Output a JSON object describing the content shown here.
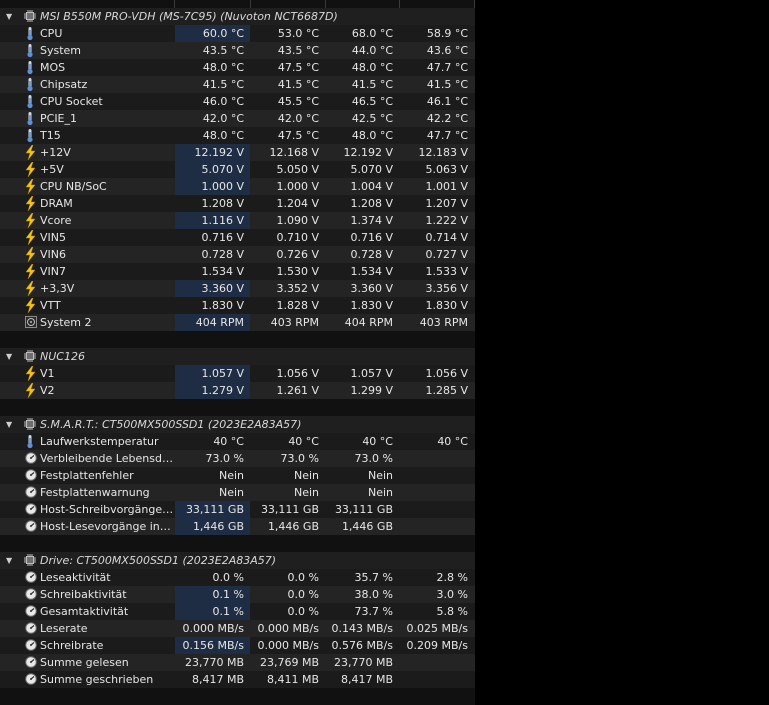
{
  "groups": [
    {
      "title": "MSI B550M PRO-VDH (MS-7C95) (Nuvoton NCT6687D)",
      "icon": "chip-icon",
      "rows": [
        {
          "label": "CPU",
          "icon": "thermometer-icon",
          "cur": "60.0 °C",
          "min": "53.0 °C",
          "max": "68.0 °C",
          "avg": "58.9 °C",
          "hl": true
        },
        {
          "label": "System",
          "icon": "thermometer-icon",
          "cur": "43.5 °C",
          "min": "43.5 °C",
          "max": "44.0 °C",
          "avg": "43.6 °C",
          "hl": false
        },
        {
          "label": "MOS",
          "icon": "thermometer-icon",
          "cur": "48.0 °C",
          "min": "47.5 °C",
          "max": "48.0 °C",
          "avg": "47.7 °C",
          "hl": false
        },
        {
          "label": "Chipsatz",
          "icon": "thermometer-icon",
          "cur": "41.5 °C",
          "min": "41.5 °C",
          "max": "41.5 °C",
          "avg": "41.5 °C",
          "hl": false
        },
        {
          "label": "CPU Socket",
          "icon": "thermometer-icon",
          "cur": "46.0 °C",
          "min": "45.5 °C",
          "max": "46.5 °C",
          "avg": "46.1 °C",
          "hl": false
        },
        {
          "label": "PCIE_1",
          "icon": "thermometer-icon",
          "cur": "42.0 °C",
          "min": "42.0 °C",
          "max": "42.5 °C",
          "avg": "42.2 °C",
          "hl": false
        },
        {
          "label": "T15",
          "icon": "thermometer-icon",
          "cur": "48.0 °C",
          "min": "47.5 °C",
          "max": "48.0 °C",
          "avg": "47.7 °C",
          "hl": false
        },
        {
          "label": "+12V",
          "icon": "lightning-icon",
          "cur": "12.192 V",
          "min": "12.168 V",
          "max": "12.192 V",
          "avg": "12.183 V",
          "hl": true
        },
        {
          "label": "+5V",
          "icon": "lightning-icon",
          "cur": "5.070 V",
          "min": "5.050 V",
          "max": "5.070 V",
          "avg": "5.063 V",
          "hl": true
        },
        {
          "label": "CPU NB/SoC",
          "icon": "lightning-icon",
          "cur": "1.000 V",
          "min": "1.000 V",
          "max": "1.004 V",
          "avg": "1.001 V",
          "hl": true
        },
        {
          "label": "DRAM",
          "icon": "lightning-icon",
          "cur": "1.208 V",
          "min": "1.204 V",
          "max": "1.208 V",
          "avg": "1.207 V",
          "hl": false
        },
        {
          "label": "Vcore",
          "icon": "lightning-icon",
          "cur": "1.116 V",
          "min": "1.090 V",
          "max": "1.374 V",
          "avg": "1.222 V",
          "hl": true
        },
        {
          "label": "VIN5",
          "icon": "lightning-icon",
          "cur": "0.716 V",
          "min": "0.710 V",
          "max": "0.716 V",
          "avg": "0.714 V",
          "hl": false
        },
        {
          "label": "VIN6",
          "icon": "lightning-icon",
          "cur": "0.728 V",
          "min": "0.726 V",
          "max": "0.728 V",
          "avg": "0.727 V",
          "hl": false
        },
        {
          "label": "VIN7",
          "icon": "lightning-icon",
          "cur": "1.534 V",
          "min": "1.530 V",
          "max": "1.534 V",
          "avg": "1.533 V",
          "hl": false
        },
        {
          "label": "+3,3V",
          "icon": "lightning-icon",
          "cur": "3.360 V",
          "min": "3.352 V",
          "max": "3.360 V",
          "avg": "3.356 V",
          "hl": true
        },
        {
          "label": "VTT",
          "icon": "lightning-icon",
          "cur": "1.830 V",
          "min": "1.828 V",
          "max": "1.830 V",
          "avg": "1.830 V",
          "hl": false
        },
        {
          "label": "System 2",
          "icon": "fan-icon",
          "cur": "404 RPM",
          "min": "403 RPM",
          "max": "404 RPM",
          "avg": "403 RPM",
          "hl": true
        }
      ]
    },
    {
      "title": "NUC126",
      "icon": "chip-icon",
      "rows": [
        {
          "label": "V1",
          "icon": "lightning-icon",
          "cur": "1.057 V",
          "min": "1.056 V",
          "max": "1.057 V",
          "avg": "1.056 V",
          "hl": true
        },
        {
          "label": "V2",
          "icon": "lightning-icon",
          "cur": "1.279 V",
          "min": "1.261 V",
          "max": "1.299 V",
          "avg": "1.285 V",
          "hl": true
        }
      ]
    },
    {
      "title": "S.M.A.R.T.: CT500MX500SSD1 (2023E2A83A57)",
      "icon": "drive-icon",
      "rows": [
        {
          "label": "Laufwerkstemperatur",
          "icon": "thermometer-icon",
          "cur": "40 °C",
          "min": "40 °C",
          "max": "40 °C",
          "avg": "40 °C",
          "hl": false
        },
        {
          "label": "Verbleibende Lebensdauer",
          "icon": "gauge-icon",
          "cur": "73.0 %",
          "min": "73.0 %",
          "max": "73.0 %",
          "avg": "",
          "hl": false
        },
        {
          "label": "Festplattenfehler",
          "icon": "gauge-icon",
          "cur": "Nein",
          "min": "Nein",
          "max": "Nein",
          "avg": "",
          "hl": false
        },
        {
          "label": "Festplattenwarnung",
          "icon": "gauge-icon",
          "cur": "Nein",
          "min": "Nein",
          "max": "Nein",
          "avg": "",
          "hl": false
        },
        {
          "label": "Host-Schreibvorgänge insgesamt",
          "icon": "gauge-icon",
          "cur": "33,111 GB",
          "min": "33,111 GB",
          "max": "33,111 GB",
          "avg": "",
          "hl": true
        },
        {
          "label": "Host-Lesevorgänge insgesamt",
          "icon": "gauge-icon",
          "cur": "1,446 GB",
          "min": "1,446 GB",
          "max": "1,446 GB",
          "avg": "",
          "hl": true
        }
      ]
    },
    {
      "title": "Drive: CT500MX500SSD1 (2023E2A83A57)",
      "icon": "drive-icon",
      "rows": [
        {
          "label": "Leseaktivität",
          "icon": "gauge-icon",
          "cur": "0.0 %",
          "min": "0.0 %",
          "max": "35.7 %",
          "avg": "2.8 %",
          "hl": false
        },
        {
          "label": "Schreibaktivität",
          "icon": "gauge-icon",
          "cur": "0.1 %",
          "min": "0.0 %",
          "max": "38.0 %",
          "avg": "3.0 %",
          "hl": true
        },
        {
          "label": "Gesamtaktivität",
          "icon": "gauge-icon",
          "cur": "0.1 %",
          "min": "0.0 %",
          "max": "73.7 %",
          "avg": "5.8 %",
          "hl": true
        },
        {
          "label": "Leserate",
          "icon": "gauge-icon",
          "cur": "0.000 MB/s",
          "min": "0.000 MB/s",
          "max": "0.143 MB/s",
          "avg": "0.025 MB/s",
          "hl": false
        },
        {
          "label": "Schreibrate",
          "icon": "gauge-icon",
          "cur": "0.156 MB/s",
          "min": "0.000 MB/s",
          "max": "0.576 MB/s",
          "avg": "0.209 MB/s",
          "hl": true
        },
        {
          "label": "Summe gelesen",
          "icon": "gauge-icon",
          "cur": "23,770 MB",
          "min": "23,769 MB",
          "max": "23,770 MB",
          "avg": "",
          "hl": false
        },
        {
          "label": "Summe geschrieben",
          "icon": "gauge-icon",
          "cur": "8,417 MB",
          "min": "8,411 MB",
          "max": "8,417 MB",
          "avg": "",
          "hl": false
        }
      ]
    }
  ],
  "colors": {
    "highlight": "#1e2c44",
    "thermometer": "#5f8fd6",
    "lightning": "#f2c318"
  }
}
